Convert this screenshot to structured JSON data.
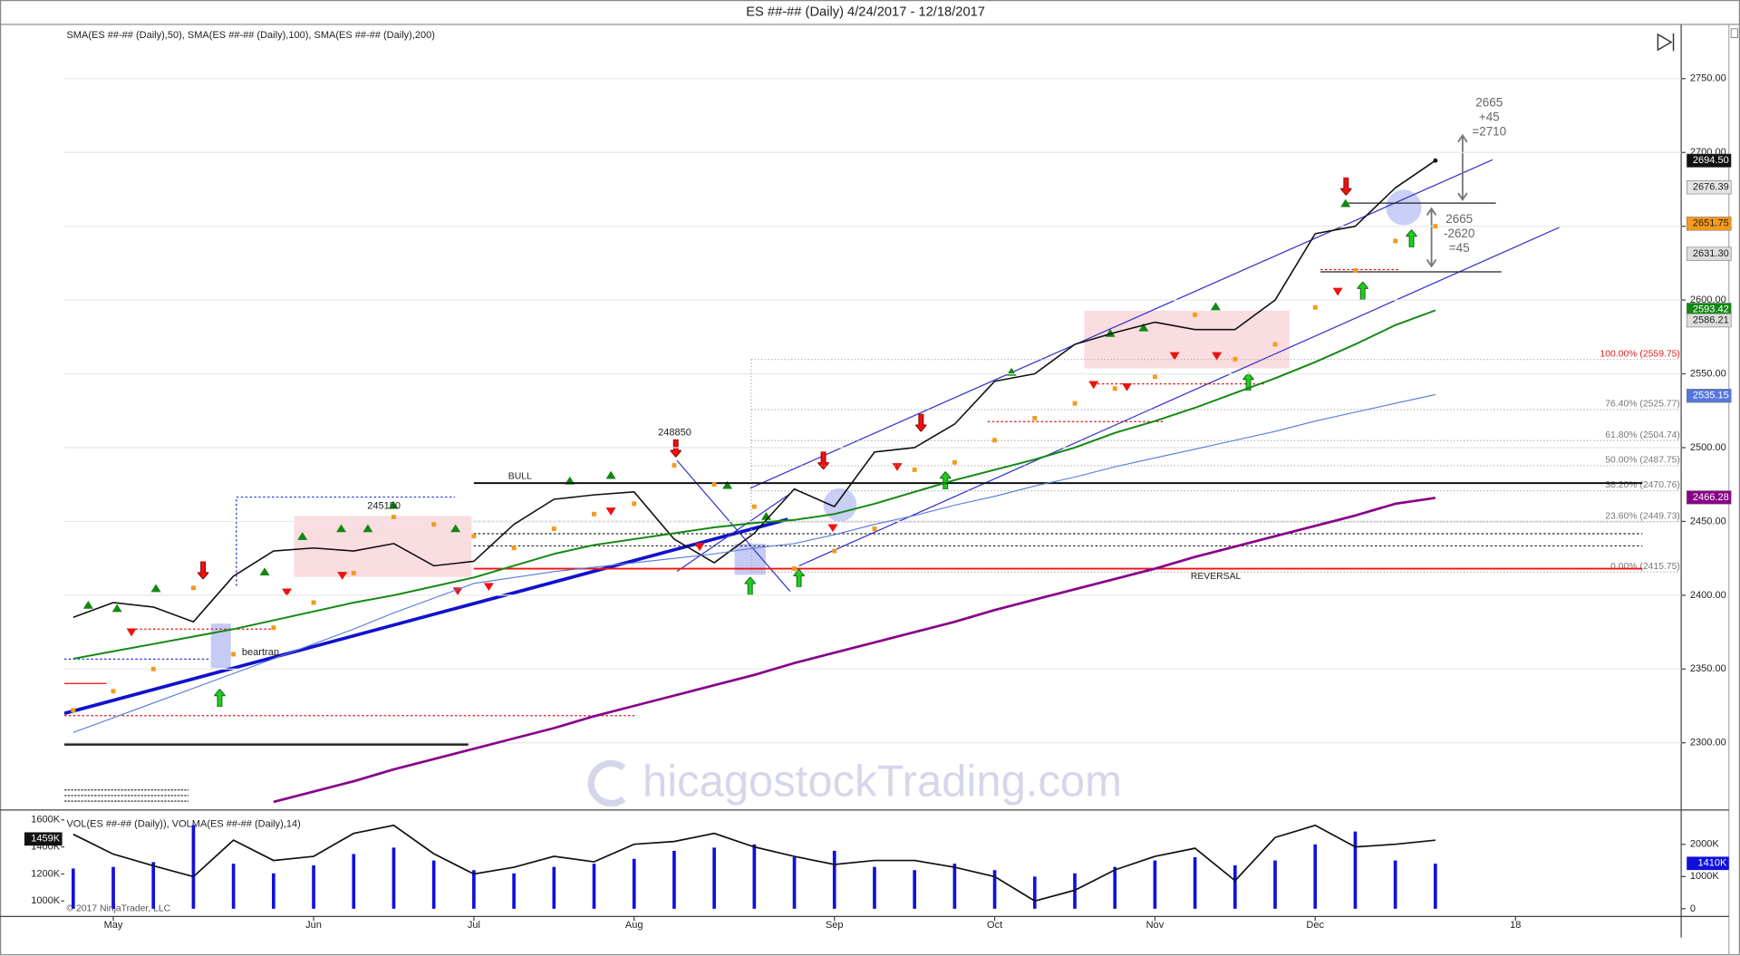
{
  "chart_data": [
    {
      "type": "line",
      "title": "ES ##-## (Daily)  4/24/2017 - 12/18/2017",
      "indicator_label": "SMA(ES ##-## (Daily),50), SMA(ES ##-## (Daily),100), SMA(ES ##-## (Daily),200)",
      "series": [
        {
          "color": "#111111",
          "style": "line",
          "values": [
            2385,
            2395,
            2392,
            2382,
            2413,
            2430,
            2432,
            2430,
            2435,
            2420,
            2423,
            2448,
            2465,
            2468,
            2470,
            2438,
            2422,
            2442,
            2472,
            2460,
            2497,
            2500,
            2516,
            2545,
            2550,
            2570,
            2578,
            2585,
            2580,
            2580,
            2600,
            2645,
            2650,
            2676,
            2694.5,
            null,
            null,
            null,
            null,
            null
          ]
        },
        {
          "color": "#118811",
          "style": "line",
          "values": [
            2357,
            2362,
            2367,
            2372,
            2377,
            2383,
            2389,
            2395,
            2400,
            2406,
            2412,
            2420,
            2428,
            2434,
            2438,
            2442,
            2446,
            2449,
            2451,
            2455,
            2462,
            2470,
            2478,
            2485,
            2492,
            2500,
            2510,
            2518,
            2527,
            2537,
            2547,
            2558,
            2570,
            2583,
            2593,
            null,
            null,
            null,
            null,
            null
          ]
        },
        {
          "color": "#5577dd",
          "style": "line",
          "values": [
            2307,
            2317,
            2327,
            2337,
            2347,
            2357,
            2367,
            2377,
            2388,
            2398,
            2408,
            2412,
            2416,
            2419,
            2422,
            2425,
            2428,
            2432,
            2435,
            2441,
            2448,
            2454,
            2461,
            2467,
            2474,
            2480,
            2487,
            2493,
            2499,
            2505,
            2511,
            2518,
            2524,
            2530,
            2536,
            null,
            null,
            null,
            null,
            null
          ]
        },
        {
          "color": "#880088",
          "style": "line",
          "values": [
            null,
            null,
            null,
            null,
            null,
            2260,
            2267,
            2274,
            2282,
            2289,
            2296,
            2303,
            2310,
            2318,
            2325,
            2332,
            2339,
            2346,
            2354,
            2361,
            2368,
            2375,
            2382,
            2390,
            2397,
            2404,
            2411,
            2418,
            2426,
            2433,
            2440,
            2447,
            2454,
            2462,
            2466,
            null,
            null,
            null,
            null,
            null
          ]
        },
        {
          "color": "#f59a1b",
          "style": "dots",
          "values": [
            2322,
            2335,
            2350,
            2405,
            2360,
            2378,
            2395,
            2415,
            2453,
            2448,
            2440,
            2432,
            2445,
            2455,
            2462,
            2488,
            2475,
            2460,
            2418,
            2430,
            2445,
            2485,
            2490,
            2505,
            2520,
            2530,
            2540,
            2548,
            2590,
            2560,
            2570,
            2595,
            2620,
            2640,
            2650,
            null,
            null,
            null,
            null,
            null
          ]
        }
      ],
      "ylim": [
        2256,
        2783
      ],
      "yticks": [
        {
          "value": 2300,
          "label": "2300.00"
        },
        {
          "value": 2350,
          "label": "2350.00"
        },
        {
          "value": 2400,
          "label": "2400.00"
        },
        {
          "value": 2450,
          "label": "2450.00"
        },
        {
          "value": 2500,
          "label": "2500.00"
        },
        {
          "value": 2550,
          "label": "2550.00"
        },
        {
          "value": 2600,
          "label": "2600.00"
        },
        {
          "value": 2650,
          "label": "2650.00"
        },
        {
          "value": 2700,
          "label": "2700.00"
        },
        {
          "value": 2750,
          "label": "2750.00"
        }
      ],
      "grid": true,
      "price_markers": [
        {
          "value": 2694.5,
          "label": "2694.50",
          "color": "#111111",
          "text_color": "#ffffff"
        },
        {
          "value": 2676.39,
          "label": "2676.39",
          "color": "#e4e4e4",
          "text_color": "#222222"
        },
        {
          "value": 2651.75,
          "label": "2651.75",
          "color": "#f59a1b",
          "text_color": "#222222"
        },
        {
          "value": 2631.3,
          "label": "2631.30",
          "color": "#dddddd",
          "text_color": "#222222"
        },
        {
          "value": 2593.42,
          "label": "2593.42",
          "color": "#118811",
          "text_color": "#ffffff"
        },
        {
          "value": 2586.21,
          "label": "2586.21",
          "color": "#dddddd",
          "text_color": "#222222"
        },
        {
          "value": 2535.15,
          "label": "2535.15",
          "color": "#5577dd",
          "text_color": "#ffffff"
        },
        {
          "value": 2466.28,
          "label": "2466.28",
          "color": "#880088",
          "text_color": "#ffffff"
        }
      ],
      "fib_levels": [
        {
          "value": 2559.75,
          "label": "100.00% (2559.75)",
          "color": "#dd2222"
        },
        {
          "value": 2525.77,
          "label": "76.40% (2525.77)",
          "color": "#777777"
        },
        {
          "value": 2504.74,
          "label": "61.80% (2504.74)",
          "color": "#777777"
        },
        {
          "value": 2487.75,
          "label": "50.00% (2487.75)",
          "color": "#777777"
        },
        {
          "value": 2470.76,
          "label": "38.20% (2470.76)",
          "color": "#777777"
        },
        {
          "value": 2449.73,
          "label": "23.60% (2449.73)",
          "color": "#777777"
        },
        {
          "value": 2415.75,
          "label": "0.00% (2415.75)",
          "color": "#777777"
        }
      ],
      "levels": [
        {
          "value": 2476,
          "label": "BULL",
          "color": "#111111"
        },
        {
          "value": 2418,
          "label": "REVERSAL",
          "color": "#ee1111"
        }
      ],
      "annotations": [
        [
          "248850"
        ],
        [
          "245150"
        ],
        [
          "beartrap"
        ],
        [
          "2665",
          "+45",
          "=2710"
        ],
        [
          "2665",
          "-2620",
          "=45"
        ]
      ],
      "watermark": "hicagostockTrading.com"
    },
    {
      "type": "bar",
      "label": "VOL(ES ##-## (Daily)), VOLMA(ES ##-## (Daily),14)",
      "categories": [
        null,
        "May",
        null,
        null,
        null,
        null,
        "Jun",
        null,
        null,
        null,
        "Jul",
        null,
        null,
        null,
        "Aug",
        null,
        null,
        null,
        null,
        "Sep",
        null,
        null,
        null,
        "Oct",
        null,
        null,
        null,
        "Nov",
        null,
        null,
        null,
        "Dec",
        null,
        null,
        null,
        null,
        "18",
        null,
        null,
        null
      ],
      "series": [
        {
          "type": "bar",
          "color": "#1010dd",
          "axis": "y2",
          "values": [
            1250,
            1300,
            1450,
            2600,
            1400,
            1100,
            1350,
            1700,
            1900,
            1500,
            1200,
            1100,
            1300,
            1400,
            1550,
            1800,
            1900,
            2000,
            1600,
            1800,
            1300,
            1200,
            1400,
            1200,
            1000,
            1100,
            1300,
            1500,
            1600,
            1350,
            1500,
            2000,
            2400,
            1500,
            1400,
            null,
            null,
            null,
            null,
            null
          ]
        },
        {
          "type": "line",
          "color": "#111111",
          "values": [
            1494,
            1347,
            1260,
            1180,
            1450,
            1300,
            1330,
            1500,
            1560,
            1350,
            1200,
            1250,
            1330,
            1290,
            1420,
            1440,
            1500,
            1400,
            1330,
            1270,
            1300,
            1300,
            1250,
            1180,
            1000,
            1080,
            1230,
            1330,
            1390,
            1150,
            1470,
            1560,
            1400,
            1420,
            1450,
            null,
            null,
            null,
            null,
            null
          ]
        }
      ],
      "ylim": [
        918,
        1657
      ],
      "yticks": [
        {
          "value": 1000,
          "label": "1000K"
        },
        {
          "value": 1200,
          "label": "1200K"
        },
        {
          "value": 1400,
          "label": "1400K"
        },
        {
          "value": 1600,
          "label": "1600K"
        }
      ],
      "y2lim": [
        -103,
        3000
      ],
      "y2ticks": [
        0,
        {
          "value": 1000,
          "label": "1000K"
        },
        {
          "value": 2000,
          "label": "2000K"
        }
      ],
      "markers": [
        {
          "value": 1459,
          "label": "1459K",
          "axis": "y",
          "color": "#111111",
          "text_color": "#ffffff"
        },
        {
          "value": 1410,
          "label": "1410K",
          "axis": "y2",
          "color": "#1010dd",
          "text_color": "#ffffff"
        }
      ],
      "copyright": "© 2017 NinjaTrader, LLC"
    }
  ]
}
